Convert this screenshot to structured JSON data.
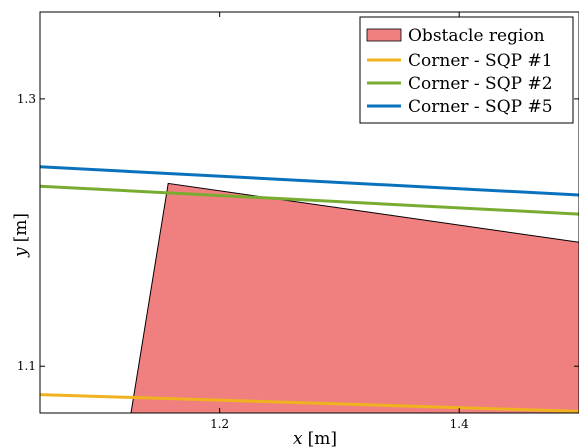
{
  "chart_data": {
    "type": "line",
    "title": "",
    "xlabel_var": "x",
    "xlabel_unit": "[m]",
    "ylabel_var": "y",
    "ylabel_unit": "[m]",
    "xlim": [
      1.05,
      1.5
    ],
    "ylim": [
      1.065,
      1.365
    ],
    "xticks": [
      1.2,
      1.4
    ],
    "yticks": [
      1.1,
      1.3
    ],
    "xtick_labels": [
      "1.2",
      "1.4"
    ],
    "ytick_labels": [
      "1.1",
      "1.3"
    ],
    "grid": false,
    "legend_position": "top-right",
    "obstacle": {
      "name": "Obstacle region",
      "color": "#f08080",
      "polygon": [
        [
          1.095,
          1.065
        ],
        [
          1.126,
          1.065
        ],
        [
          1.157,
          1.2368
        ],
        [
          1.5,
          1.1927
        ],
        [
          1.5,
          1.065
        ]
      ]
    },
    "series": [
      {
        "name": "Corner - SQP #1",
        "color": "#f0b21f",
        "x": [
          1.05,
          1.5
        ],
        "y": [
          1.0788,
          1.0662
        ]
      },
      {
        "name": "Corner - SQP #2",
        "color": "#77ac30",
        "x": [
          1.05,
          1.5
        ],
        "y": [
          1.2347,
          1.2138
        ]
      },
      {
        "name": "Corner - SQP #5",
        "color": "#0a72bd",
        "x": [
          1.05,
          1.5
        ],
        "y": [
          1.2492,
          1.2281
        ]
      }
    ]
  }
}
